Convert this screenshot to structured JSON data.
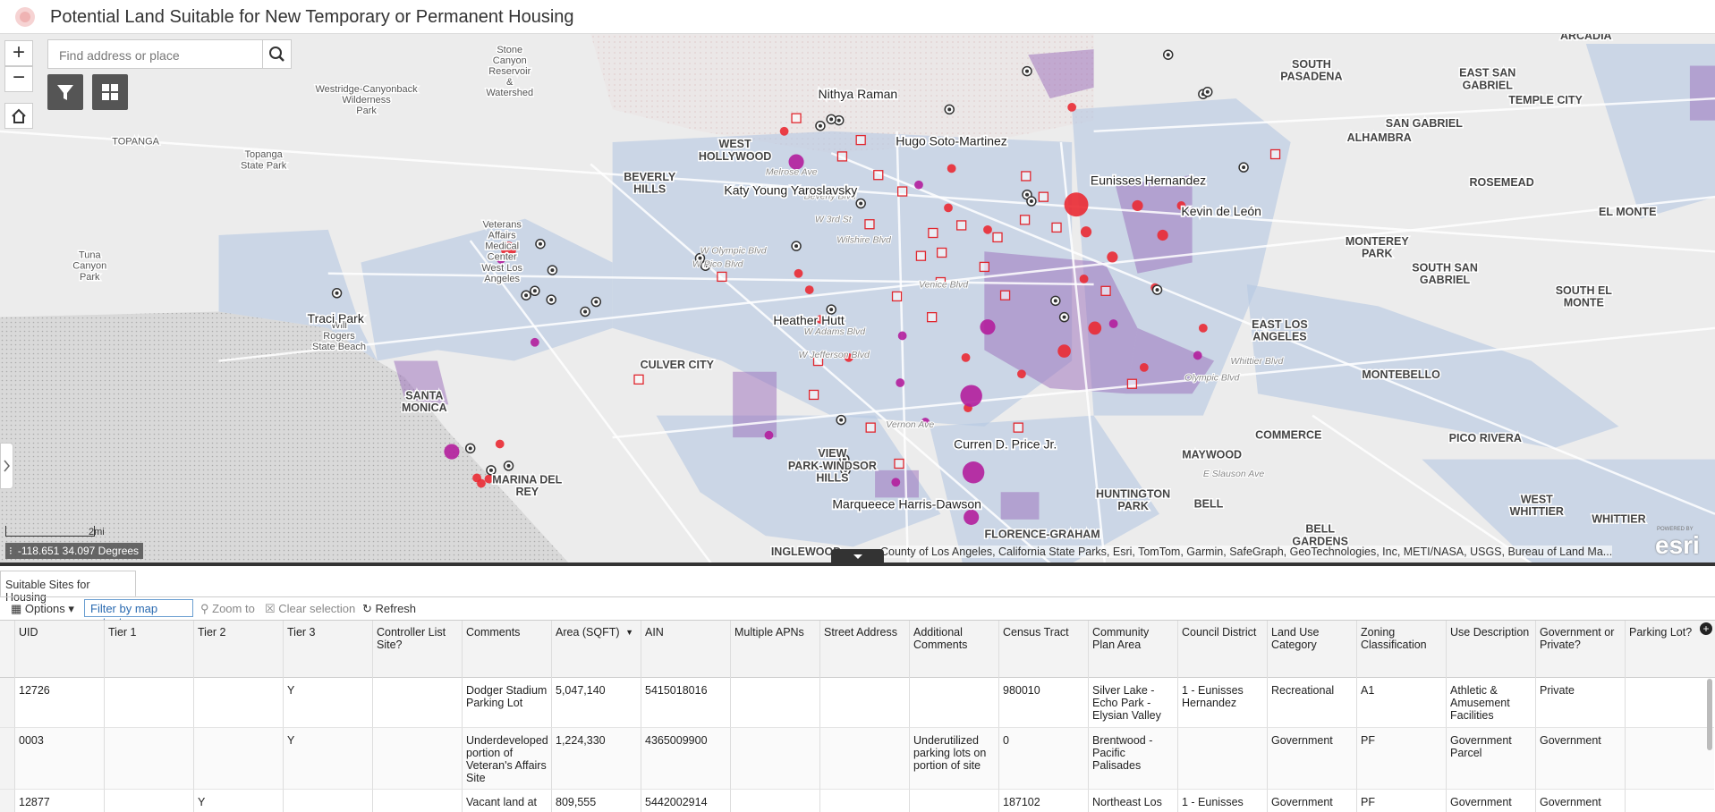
{
  "header": {
    "title": "Potential Land Suitable for New Temporary or Permanent Housing"
  },
  "search": {
    "placeholder": "Find address or place"
  },
  "map": {
    "district_labels": [
      "Nithya Raman",
      "Hugo Soto-Martinez",
      "Katy Young Yaroslavsky",
      "Eunisses Hernandez",
      "Kevin de León",
      "Traci Park",
      "Heather Hutt",
      "Curren D. Price Jr.",
      "Marqueece Harris-Dawson"
    ],
    "place_labels": [
      "BEVERLY\nHILLS",
      "WEST\nHOLLYWOOD",
      "CULVER CITY",
      "SANTA\nMONICA",
      "EAST LOS\nANGELES",
      "ALHAMBRA",
      "MONTEREY\nPARK",
      "MONTEBELLO",
      "COMMERCE",
      "PICO RIVERA",
      "HUNTINGTON\nPARK",
      "MAYWOOD",
      "BELL",
      "BELL\nGARDENS",
      "SOUTH\nPASADENA",
      "EAST SAN\nGABRIEL",
      "SAN GABRIEL",
      "TEMPLE CITY",
      "ROSEMEAD",
      "EL MONTE",
      "SOUTH EL\nMONTE",
      "SOUTH SAN\nGABRIEL",
      "WEST\nWHITTIER",
      "WHITTIER",
      "ARCADIA",
      "VIEW\nPARK-WINDSOR\nHILLS",
      "MARINA DEL\nREY",
      "INGLEWOOD",
      "FLORENCE-GRAHAM",
      "TOPANGA",
      "Topanga\nState Park",
      "Tuna\nCanyon\nPark",
      "Will\nRogers\nState Beach",
      "Westridge-Canyonback\nWilderness\nPark",
      "Stone\nCanyon\nReservoir\n&\nWatershed",
      "Veterans\nAffairs\nMedical\nCenter\nWest Los\nAngeles"
    ],
    "street_labels": [
      "Melrose Ave",
      "Beverly Blvd",
      "W 3rd St",
      "Wilshire Blvd",
      "W Olympic Blvd",
      "W Pico Blvd",
      "Venice Blvd",
      "W Adams Blvd",
      "W Jefferson Blvd",
      "Vernon Ave",
      "E Slauson Ave",
      "Whittier Blvd",
      "Olympic Blvd"
    ],
    "coordinates": "-118.651 34.097 Degrees",
    "scale": "2mi",
    "attribution": "County of Los Angeles, California State Parks, Esri, TomTom, Garmin, SafeGraph, GeoTechnologies, Inc, METI/NASA, USGS, Bureau of Land Ma...",
    "powered_by": "POWERED BY",
    "logo": "esri"
  },
  "table": {
    "tab": "Suitable Sites for Housing",
    "toolbar": {
      "options": "Options",
      "filter": "Filter by map extent",
      "zoom": "Zoom to",
      "clear": "Clear selection",
      "refresh": "Refresh"
    },
    "columns": [
      "UID",
      "Tier 1",
      "Tier 2",
      "Tier 3",
      "Controller List Site?",
      "Comments",
      "Area (SQFT)",
      "AIN",
      "Multiple APNs",
      "Street Address",
      "Additional Comments",
      "Census Tract",
      "Community Plan Area",
      "Council District",
      "Land Use Category",
      "Zoning Classification",
      "Use Description",
      "Government or Private?",
      "Parking Lot?"
    ],
    "rows": [
      [
        "12726",
        null,
        null,
        "Y",
        null,
        "Dodger Stadium Parking Lot",
        "5,047,140",
        "5415018016",
        null,
        null,
        null,
        "980010",
        "Silver Lake - Echo Park - Elysian Valley",
        "1 - Eunisses Hernandez",
        "Recreational",
        "A1",
        "Athletic & Amusement Facilities",
        "Private",
        null
      ],
      [
        "0003",
        null,
        null,
        "Y",
        null,
        "Underdeveloped portion of Veteran's Affairs Site",
        "1,224,330",
        "4365009900",
        null,
        null,
        "Underutilized parking lots on portion of site",
        "0",
        "Brentwood - Pacific Palisades",
        null,
        "Government",
        "PF",
        "Government Parcel",
        "Government",
        null
      ],
      [
        "12877",
        null,
        "Y",
        null,
        null,
        "Vacant land at",
        "809,555",
        "5442002914",
        null,
        null,
        null,
        "187102",
        "Northeast Los",
        "1 - Eunisses",
        "Government",
        "PF",
        "Government",
        "Government",
        null
      ]
    ]
  }
}
